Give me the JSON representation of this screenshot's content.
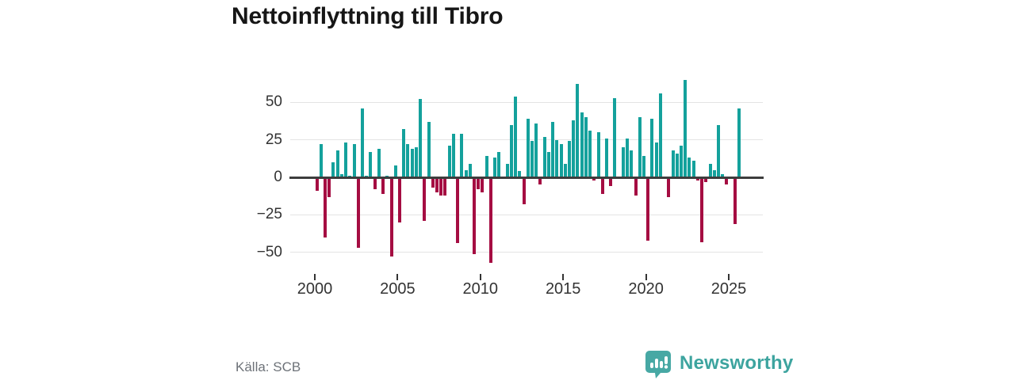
{
  "title": "Nettoinflyttning till Tibro",
  "source": "Källa: SCB",
  "logo": {
    "brand": "Newsworthy",
    "color": "#3da49f"
  },
  "colors": {
    "positive_bar": "#14a19c",
    "negative_bar": "#a50d42",
    "axis": "#3d3d3d",
    "grid": "#e4e4e4",
    "title_text": "#161616",
    "tick_text": "#333333",
    "muted_text": "#6d7278"
  },
  "chart_data": {
    "type": "bar",
    "title": "Nettoinflyttning till Tibro",
    "x_start": "2000 Q1",
    "frequency": "quarterly",
    "x_tick_labels": [
      "2000",
      "2005",
      "2010",
      "2015",
      "2020",
      "2025"
    ],
    "y_tick_labels": [
      "50",
      "25",
      "0",
      "−25",
      "−50"
    ],
    "y_tick_values": [
      50,
      25,
      0,
      -25,
      -50
    ],
    "ylim": [
      -60,
      70
    ],
    "grid": true,
    "legend": "none",
    "values": [
      -9,
      22,
      -40,
      -13,
      10,
      18,
      2,
      23,
      1,
      22,
      -47,
      46,
      1,
      17,
      -8,
      19,
      -11,
      1,
      -53,
      8,
      -30,
      32,
      22,
      19,
      20,
      52,
      -29,
      37,
      -7,
      -10,
      -12,
      -12,
      21,
      29,
      -44,
      29,
      5,
      9,
      -51,
      -8,
      -10,
      14,
      -57,
      13,
      17,
      0,
      9,
      35,
      54,
      4,
      -18,
      39,
      24,
      36,
      -5,
      27,
      17,
      37,
      25,
      22,
      9,
      24,
      38,
      62,
      43,
      40,
      31,
      -2,
      30,
      -11,
      26,
      -6,
      53,
      0,
      20,
      26,
      18,
      -12,
      40,
      14,
      -42,
      39,
      23,
      56,
      0,
      -13,
      18,
      16,
      21,
      65,
      13,
      11,
      -2,
      -43,
      -3,
      9,
      5,
      35,
      2,
      -5,
      0,
      -31,
      46
    ]
  }
}
